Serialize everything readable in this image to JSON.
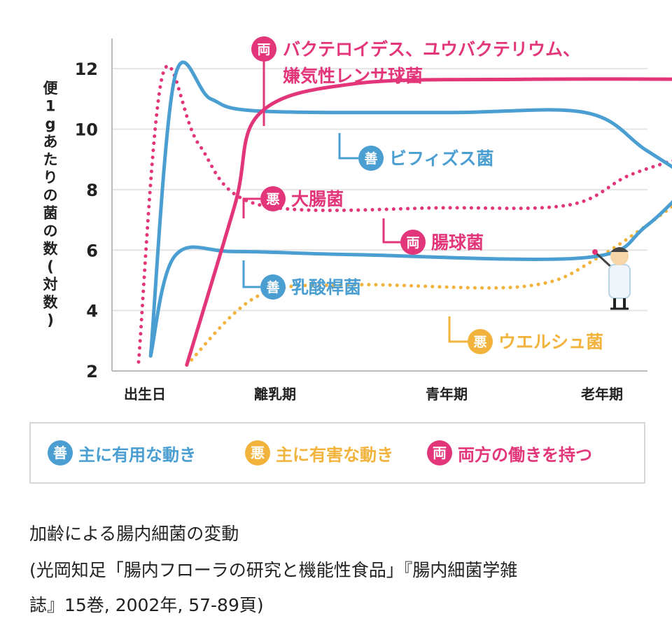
{
  "chart_data": {
    "type": "line",
    "ylabel": "便1gあたりの菌の数(対数)",
    "ylim": [
      2,
      13
    ],
    "yticks": [
      2,
      4,
      6,
      8,
      10,
      12
    ],
    "x_categories": [
      "出生日",
      "離乳期",
      "青年期",
      "老年期"
    ],
    "series": [
      {
        "key": "bifidus",
        "name": "ビフィズス菌",
        "group": "善",
        "color": "#4a9ed1",
        "style": "solid",
        "points": [
          [
            0.1,
            2.5
          ],
          [
            0.3,
            11.7
          ],
          [
            0.6,
            11.0
          ],
          [
            1.0,
            10.6
          ],
          [
            2.0,
            10.55
          ],
          [
            2.9,
            10.55
          ],
          [
            3.3,
            9.3
          ],
          [
            3.7,
            8.0
          ]
        ]
      },
      {
        "key": "lactobacillus",
        "name": "乳酸桿菌",
        "group": "善",
        "color": "#4a9ed1",
        "style": "solid",
        "points": [
          [
            0.1,
            2.5
          ],
          [
            0.3,
            5.8
          ],
          [
            0.8,
            5.95
          ],
          [
            1.5,
            5.85
          ],
          [
            2.9,
            5.75
          ],
          [
            3.3,
            6.8
          ],
          [
            3.7,
            8.8
          ]
        ]
      },
      {
        "key": "ecoli",
        "name": "大腸菌",
        "group": "悪",
        "color": "#e2357a",
        "style": "dotted",
        "points": [
          [
            0.0,
            2.3
          ],
          [
            0.2,
            11.8
          ],
          [
            0.5,
            9.5
          ],
          [
            1.0,
            7.5
          ],
          [
            2.0,
            7.4
          ],
          [
            2.8,
            7.5
          ],
          [
            3.2,
            8.5
          ],
          [
            3.7,
            9.3
          ]
        ]
      },
      {
        "key": "bacteroides",
        "name": "バクテロイデス、ユウバクテリウム、嫌気性レンサ球菌",
        "group": "両",
        "color": "#e2357a",
        "style": "solid",
        "points": [
          [
            0.4,
            2.2
          ],
          [
            0.8,
            7.5
          ],
          [
            1.0,
            10.5
          ],
          [
            1.5,
            11.5
          ],
          [
            2.5,
            11.65
          ],
          [
            3.7,
            11.65
          ]
        ]
      },
      {
        "key": "welchii",
        "name": "ウエルシュ菌",
        "group": "悪",
        "color": "#f2b33d",
        "style": "dotted",
        "points": [
          [
            0.4,
            2.2
          ],
          [
            1.0,
            4.5
          ],
          [
            1.5,
            4.85
          ],
          [
            2.5,
            4.8
          ],
          [
            3.0,
            5.8
          ],
          [
            3.7,
            8.3
          ]
        ]
      }
    ],
    "annotations": [
      {
        "key": "bifidus",
        "badge": "善",
        "badge_color": "#4a9ed1",
        "text": "ビフィズス菌"
      },
      {
        "key": "lactobacillus",
        "badge": "善",
        "badge_color": "#4a9ed1",
        "text": "乳酸桿菌"
      },
      {
        "key": "ecoli",
        "badge": "悪",
        "badge_color": "#e2357a",
        "text": "大腸菌"
      },
      {
        "key": "enterococcus",
        "badge": "両",
        "badge_color": "#e2357a",
        "text": "腸球菌"
      },
      {
        "key": "welchii",
        "badge": "悪",
        "badge_color": "#f2b33d",
        "text": "ウエルシュ菌"
      },
      {
        "key": "bacteroides",
        "badge": "両",
        "badge_color": "#e2357a",
        "text": "バクテロイデス、ユウバクテリウム、",
        "text2": "嫌気性レンサ球菌"
      }
    ]
  },
  "legend": {
    "items": [
      {
        "badge": "善",
        "color": "#4a9ed1",
        "label": "主に有用な動き"
      },
      {
        "badge": "悪",
        "color": "#f2b33d",
        "label": "主に有害な動き"
      },
      {
        "badge": "両",
        "color": "#e2357a",
        "label": "両方の働きを持つ"
      }
    ]
  },
  "caption": {
    "title": "加齢による腸内細菌の変動",
    "source_line1": "(光岡知足「腸内フローラの研究と機能性食品」『腸内細菌学雑",
    "source_line2": "誌』15巻, 2002年, 57-89頁)"
  }
}
